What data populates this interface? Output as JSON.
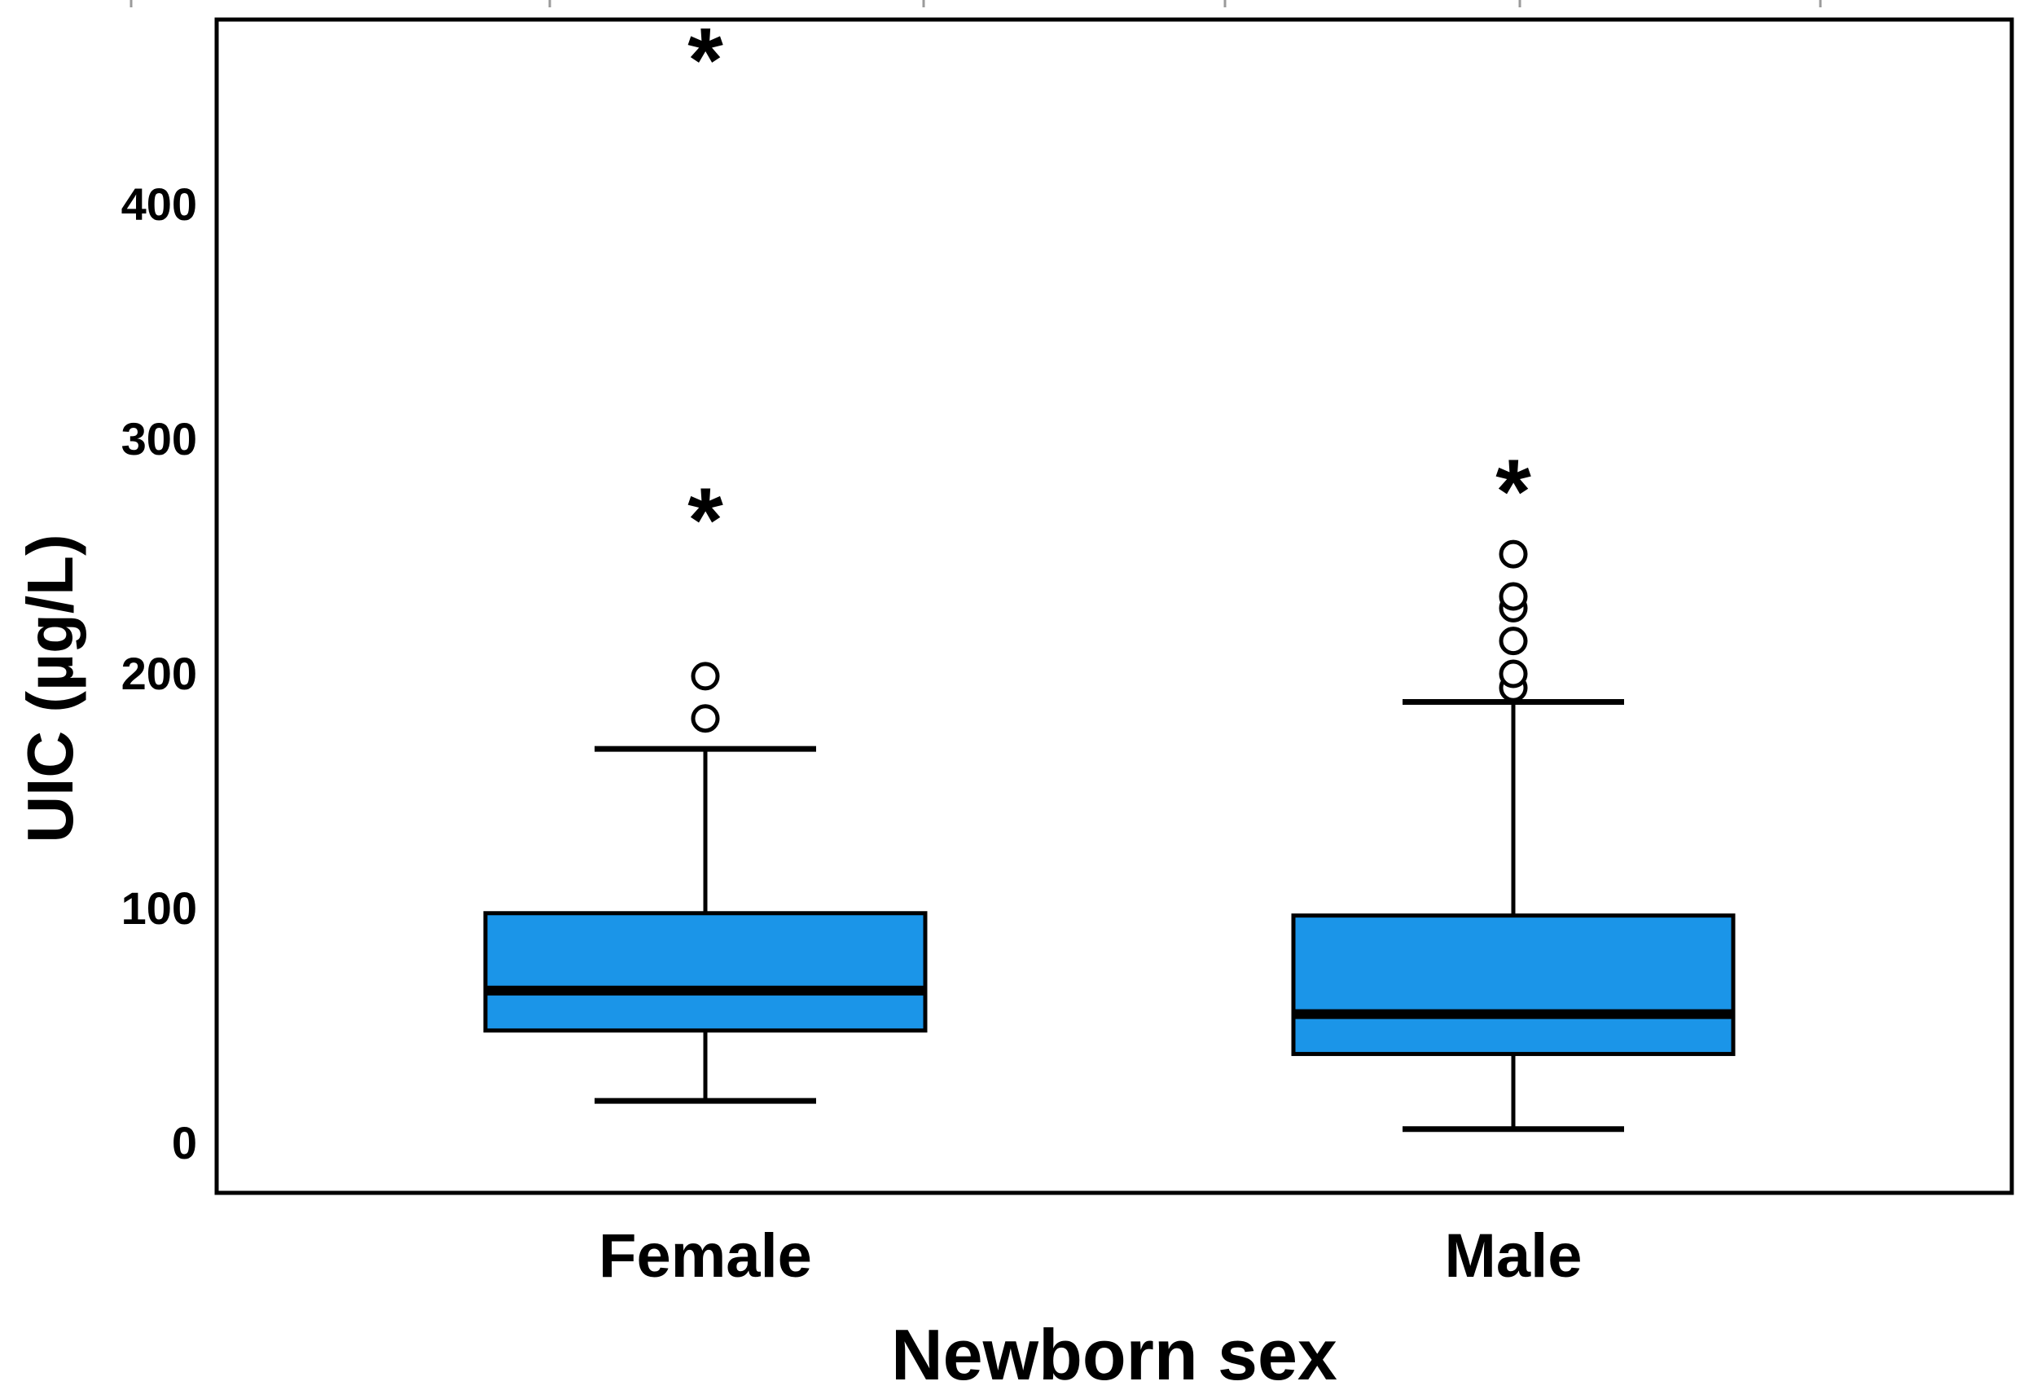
{
  "figure": {
    "background_color": "#FFFFFF"
  },
  "chart_data": {
    "type": "boxplot",
    "title": "",
    "xlabel": "Newborn sex",
    "ylabel": "UIC (µg/L)",
    "categories": [
      "Female",
      "Male"
    ],
    "yticks": [
      0,
      100,
      200,
      300,
      400
    ],
    "ylim": [
      -22,
      480
    ],
    "grid": false,
    "legend": "none",
    "series": [
      {
        "name": "Female",
        "q1": 48,
        "median": 65,
        "q3": 98,
        "whisker_low": 18,
        "whisker_high": 168,
        "outliers_mild": [
          181,
          199
        ],
        "outliers_extreme": [
          272,
          468
        ]
      },
      {
        "name": "Male",
        "q1": 38,
        "median": 55,
        "q3": 97,
        "whisker_low": 6,
        "whisker_high": 188,
        "outliers_mild": [
          194,
          200,
          214,
          228,
          233,
          251
        ],
        "outliers_extreme": [
          284
        ]
      }
    ],
    "colors": {
      "box_fill": "#1B95E8",
      "stroke": "#000000",
      "outlier_fill": "#FFFFFF",
      "top_tick_color": "#9B9B9B"
    }
  }
}
